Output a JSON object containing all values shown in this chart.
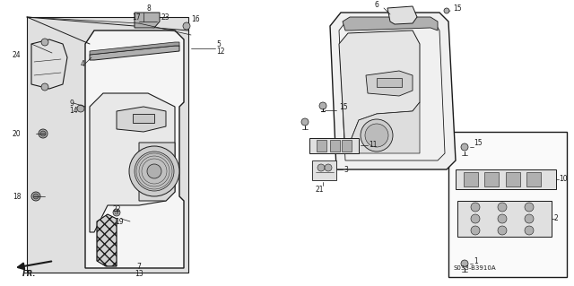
{
  "bg_color": "#ffffff",
  "line_color": "#1a1a1a",
  "part_number_text": "S033-B3910A",
  "fr_label": "FR.",
  "fig_width": 6.4,
  "fig_height": 3.19,
  "dpi": 100,
  "gray_fill": "#c8c8c8",
  "light_gray": "#e0e0e0",
  "mid_gray": "#b0b0b0"
}
